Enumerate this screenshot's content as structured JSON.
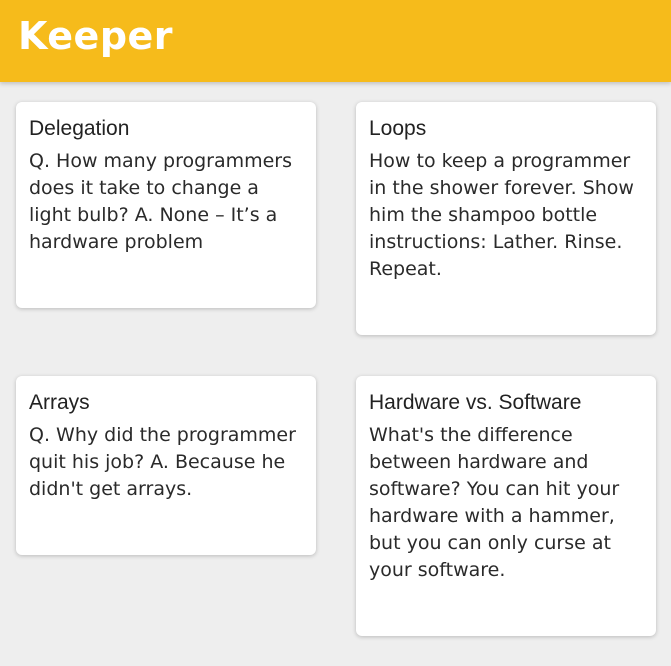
{
  "header": {
    "title": "Keeper",
    "background_color": "#f6bb1b"
  },
  "notes": [
    {
      "title": "Delegation",
      "content": "Q. How many programmers does it take to change a light bulb? A. None – It’s a hardware problem"
    },
    {
      "title": "Loops",
      "content": "How to keep a programmer in the shower forever. Show him the shampoo bottle instructions: Lather. Rinse. Repeat."
    },
    {
      "title": "Arrays",
      "content": "Q. Why did the programmer quit his job? A. Because he didn't get arrays."
    },
    {
      "title": "Hardware vs. Software",
      "content": "What's the difference between hardware and software? You can hit your hardware with a hammer, but you can only curse at your software."
    }
  ]
}
